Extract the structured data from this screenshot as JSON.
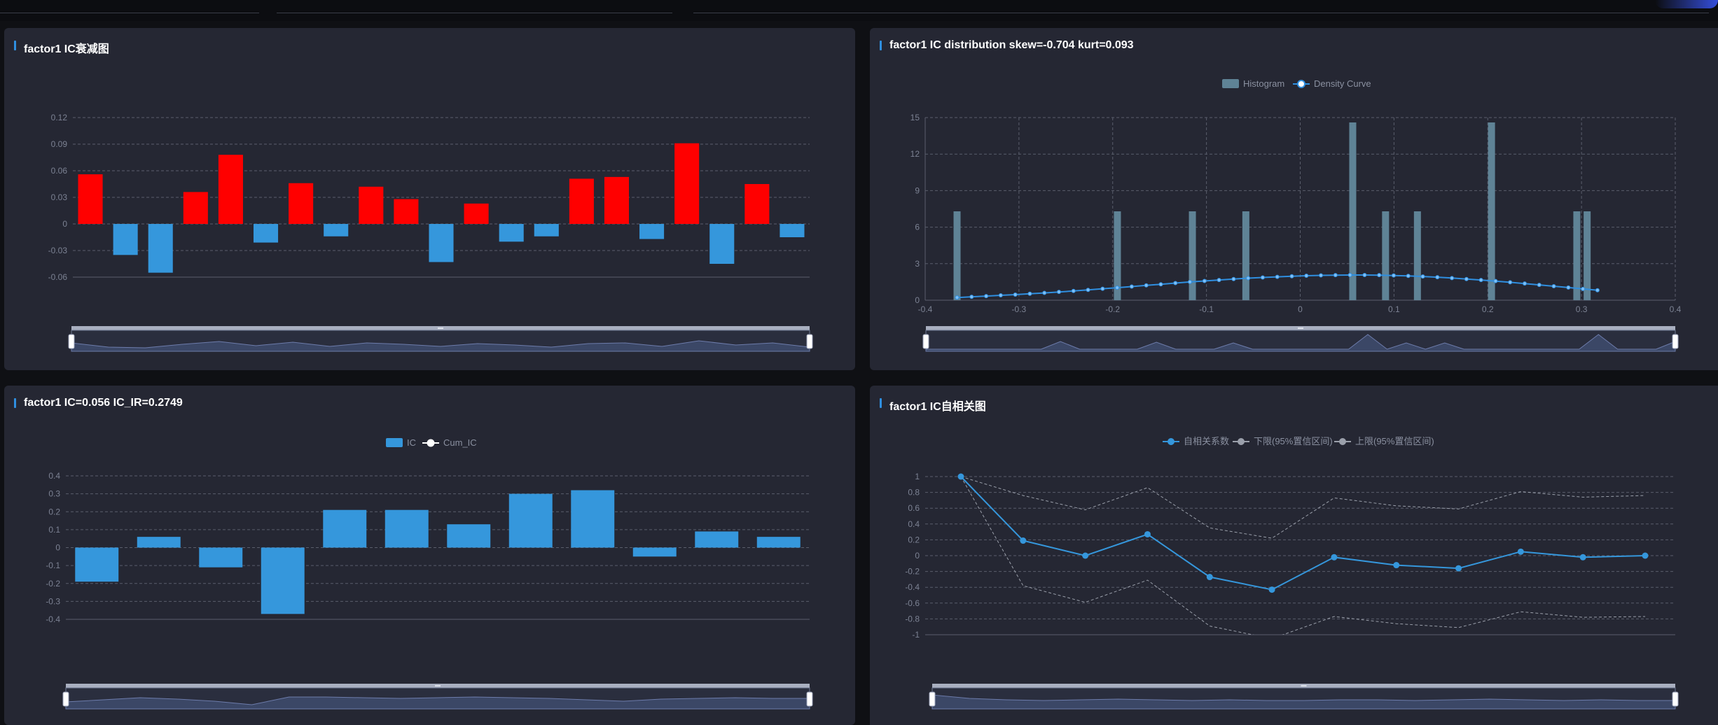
{
  "panels": {
    "decay": {
      "title": "factor1 IC衰减图",
      "chart_data": {
        "type": "bar",
        "ylim": [
          -0.06,
          0.12
        ],
        "yticks": [
          "0.12",
          "0.09",
          "0.06",
          "0.03",
          "0",
          "-0.03",
          "-0.06"
        ],
        "positive_color": "#ff0000",
        "negative_color": "#3597dc",
        "values": [
          0.056,
          -0.035,
          -0.055,
          0.036,
          0.078,
          -0.021,
          0.046,
          -0.014,
          0.042,
          0.028,
          -0.043,
          0.023,
          -0.02,
          -0.014,
          0.051,
          0.053,
          -0.017,
          0.091,
          -0.045,
          0.045,
          -0.015
        ]
      }
    },
    "distribution": {
      "title": "factor1 IC distribution skew=-0.704 kurt=0.093",
      "legend": [
        "Histogram",
        "Density Curve"
      ],
      "chart_data": {
        "type": "bar",
        "xlim": [
          -0.4,
          0.4
        ],
        "ylim": [
          0,
          15
        ],
        "xticks": [
          "-0.4",
          "-0.3",
          "-0.2",
          "-0.1",
          "0",
          "0.1",
          "0.2",
          "0.3",
          "0.4"
        ],
        "yticks": [
          "15",
          "12",
          "9",
          "6",
          "3",
          "0"
        ],
        "histogram_color": "#5f8396",
        "density_color": "#2f8fe0",
        "histogram": [
          {
            "x": -0.366,
            "count": 7.3
          },
          {
            "x": -0.195,
            "count": 7.3
          },
          {
            "x": -0.115,
            "count": 7.3
          },
          {
            "x": -0.058,
            "count": 7.3
          },
          {
            "x": 0.056,
            "count": 14.6
          },
          {
            "x": 0.091,
            "count": 7.3
          },
          {
            "x": 0.125,
            "count": 7.3
          },
          {
            "x": 0.204,
            "count": 14.6
          },
          {
            "x": 0.295,
            "count": 7.3
          },
          {
            "x": 0.306,
            "count": 7.3
          }
        ],
        "density": {
          "x_start": -0.366,
          "x_end": 0.317,
          "points": [
            0.22,
            0.28,
            0.34,
            0.4,
            0.46,
            0.53,
            0.6,
            0.68,
            0.76,
            0.85,
            0.94,
            1.03,
            1.12,
            1.22,
            1.31,
            1.41,
            1.5,
            1.58,
            1.66,
            1.74,
            1.81,
            1.87,
            1.92,
            1.97,
            2.01,
            2.04,
            2.06,
            2.07,
            2.07,
            2.06,
            2.03,
            2.0,
            1.95,
            1.89,
            1.82,
            1.74,
            1.66,
            1.57,
            1.47,
            1.37,
            1.26,
            1.15,
            1.04,
            0.93,
            0.82
          ]
        }
      }
    },
    "ic": {
      "title": "factor1 IC=0.056 IC_IR=0.2749",
      "legend": [
        "IC",
        "Cum_IC"
      ],
      "chart_data": {
        "type": "bar",
        "ylim": [
          -0.4,
          0.4
        ],
        "yticks": [
          "0.4",
          "0.3",
          "0.2",
          "0.1",
          "0",
          "-0.1",
          "-0.2",
          "-0.3",
          "-0.4"
        ],
        "bar_color": "#3597dc",
        "values": [
          -0.19,
          0.06,
          -0.11,
          -0.37,
          0.21,
          0.21,
          0.13,
          0.3,
          0.32,
          -0.05,
          0.09,
          0.06
        ]
      }
    },
    "acf": {
      "title": "factor1 IC自相关图",
      "legend": [
        "自相关系数",
        "下限(95%置信区间)",
        "上限(95%置信区间)"
      ],
      "chart_data": {
        "type": "line",
        "ylim": [
          -1,
          1
        ],
        "yticks": [
          "1",
          "0.8",
          "0.6",
          "0.4",
          "0.2",
          "0",
          "-0.2",
          "-0.4",
          "-0.6",
          "-0.8",
          "-1"
        ],
        "acf_color": "#3597dc",
        "band_color": "#9ba0ab",
        "series": [
          {
            "name": "自相关系数",
            "values": [
              1.0,
              0.19,
              0.0,
              0.27,
              -0.27,
              -0.43,
              -0.02,
              -0.12,
              -0.16,
              0.05,
              -0.02,
              0.0
            ]
          },
          {
            "name": "下限(95%置信区间)",
            "values": [
              1.0,
              -0.38,
              -0.59,
              -0.31,
              -0.89,
              -1.05,
              -0.77,
              -0.86,
              -0.91,
              -0.71,
              -0.78,
              -0.77
            ]
          },
          {
            "name": "上限(95%置信区间)",
            "values": [
              1.0,
              0.76,
              0.58,
              0.86,
              0.35,
              0.22,
              0.73,
              0.63,
              0.59,
              0.81,
              0.74,
              0.76
            ]
          }
        ]
      }
    }
  },
  "colors": {
    "panel_bg": "#252733",
    "page_bg": "#0f1014",
    "grid": "#5a5e6c",
    "accent": "#2f8fe0",
    "slider_bar": "#a9afc0",
    "slider_fill": "#3b4766"
  }
}
